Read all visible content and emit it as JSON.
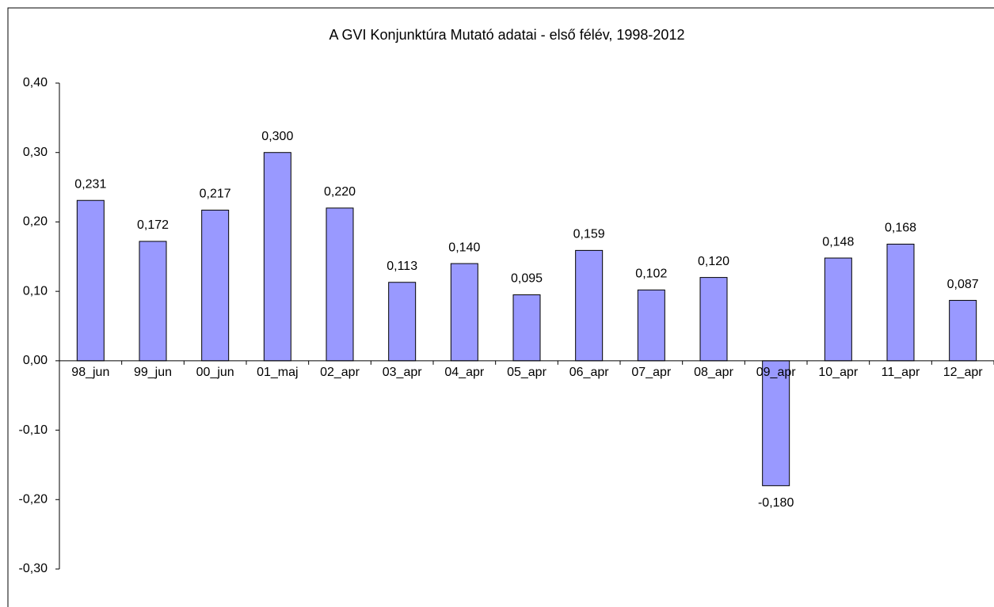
{
  "chart_data": {
    "type": "bar",
    "title": "A GVI Konjunktúra Mutató adatai - első félév, 1998-2012",
    "categories": [
      "98_jun",
      "99_jun",
      "00_jun",
      "01_maj",
      "02_apr",
      "03_apr",
      "04_apr",
      "05_apr",
      "06_apr",
      "07_apr",
      "08_apr",
      "09_apr",
      "10_apr",
      "11_apr",
      "12_apr"
    ],
    "values": [
      0.231,
      0.172,
      0.217,
      0.3,
      0.22,
      0.113,
      0.14,
      0.095,
      0.159,
      0.102,
      0.12,
      -0.18,
      0.148,
      0.168,
      0.087
    ],
    "value_labels": [
      "0,231",
      "0,172",
      "0,217",
      "0,300",
      "0,220",
      "0,113",
      "0,140",
      "0,095",
      "0,159",
      "0,102",
      "0,120",
      "-0,180",
      "0,148",
      "0,168",
      "0,087"
    ],
    "color": "#9999ff",
    "ylim": [
      -0.3,
      0.4
    ],
    "yticks": [
      {
        "value": -0.3,
        "label": "-0,30"
      },
      {
        "value": -0.2,
        "label": "-0,20"
      },
      {
        "value": -0.1,
        "label": "-0,10"
      },
      {
        "value": 0,
        "label": "0,00"
      },
      {
        "value": 0.1,
        "label": "0,10"
      },
      {
        "value": 0.2,
        "label": "0,20"
      },
      {
        "value": 0.3,
        "label": "0,30"
      },
      {
        "value": 0.4,
        "label": "0,40"
      }
    ],
    "grid": false
  }
}
